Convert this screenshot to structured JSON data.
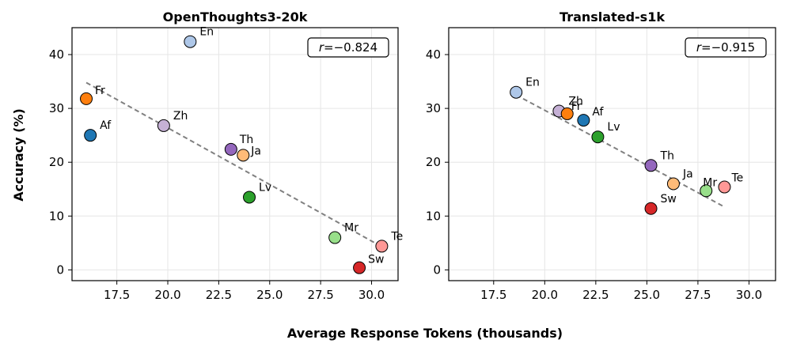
{
  "figure": {
    "xlabel": "Average Response Tokens (thousands)",
    "ylabel": "Accuracy (%)"
  },
  "chart_data": [
    {
      "type": "scatter",
      "title": "OpenThoughts3-20k",
      "xlim": [
        15.3,
        31.3
      ],
      "ylim": [
        -2,
        45
      ],
      "xticks": [
        17.5,
        20.0,
        22.5,
        25.0,
        27.5,
        30.0
      ],
      "yticks": [
        0,
        10,
        20,
        30,
        40
      ],
      "grid": true,
      "annotation": {
        "var": "r",
        "eq": "=",
        "value": "−0.824"
      },
      "trend": {
        "x": [
          16.0,
          30.5
        ],
        "y": [
          34.8,
          4.3
        ]
      },
      "points": [
        {
          "label": "En",
          "x": 21.1,
          "y": 42.4,
          "color": "#aec7e8"
        },
        {
          "label": "Fr",
          "x": 16.0,
          "y": 31.8,
          "color": "#ff7f0e"
        },
        {
          "label": "Af",
          "x": 16.2,
          "y": 25.0,
          "color": "#1f77b4"
        },
        {
          "label": "Zh",
          "x": 19.8,
          "y": 26.8,
          "color": "#c5b0d5"
        },
        {
          "label": "Th",
          "x": 23.1,
          "y": 22.4,
          "color": "#9467bd"
        },
        {
          "label": "Ja",
          "x": 23.7,
          "y": 21.3,
          "color": "#ffbb78"
        },
        {
          "label": "Lv",
          "x": 24.0,
          "y": 13.5,
          "color": "#2ca02c"
        },
        {
          "label": "Mr",
          "x": 28.2,
          "y": 6.0,
          "color": "#98df8a"
        },
        {
          "label": "Te",
          "x": 30.5,
          "y": 4.4,
          "color": "#ff9896"
        },
        {
          "label": "Sw",
          "x": 29.4,
          "y": 0.4,
          "color": "#d62728"
        }
      ]
    },
    {
      "type": "scatter",
      "title": "Translated-s1k",
      "xlim": [
        15.3,
        31.3
      ],
      "ylim": [
        -2,
        45
      ],
      "xticks": [
        17.5,
        20.0,
        22.5,
        25.0,
        27.5,
        30.0
      ],
      "yticks": [
        0,
        10,
        20,
        30,
        40
      ],
      "grid": true,
      "annotation": {
        "var": "r",
        "eq": "=",
        "value": "−0.915"
      },
      "trend": {
        "x": [
          18.6,
          28.8
        ],
        "y": [
          32.5,
          11.7
        ]
      },
      "points": [
        {
          "label": "En",
          "x": 18.6,
          "y": 33.0,
          "color": "#aec7e8"
        },
        {
          "label": "Zh",
          "x": 20.7,
          "y": 29.5,
          "color": "#c5b0d5"
        },
        {
          "label": "Fr",
          "x": 21.1,
          "y": 29.0,
          "color": "#ff7f0e"
        },
        {
          "label": "Af",
          "x": 21.9,
          "y": 27.8,
          "color": "#1f77b4"
        },
        {
          "label": "Lv",
          "x": 22.6,
          "y": 24.7,
          "color": "#2ca02c"
        },
        {
          "label": "Th",
          "x": 25.2,
          "y": 19.4,
          "color": "#9467bd"
        },
        {
          "label": "Ja",
          "x": 26.3,
          "y": 16.0,
          "color": "#ffbb78"
        },
        {
          "label": "Mr",
          "x": 27.9,
          "y": 14.7,
          "color": "#98df8a"
        },
        {
          "label": "Te",
          "x": 28.8,
          "y": 15.4,
          "color": "#ff9896"
        },
        {
          "label": "Sw",
          "x": 25.2,
          "y": 11.4,
          "color": "#d62728"
        }
      ]
    }
  ]
}
